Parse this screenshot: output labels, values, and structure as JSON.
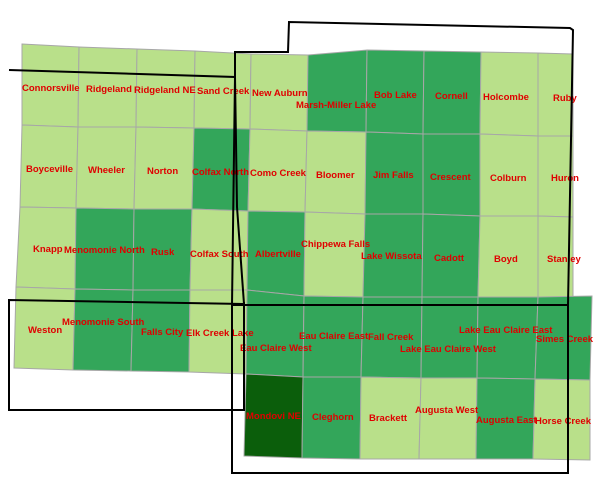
{
  "colors": {
    "light": "#b9e08a",
    "medium": "#33a65a",
    "dark": "#0b5e0b",
    "label": "#e00000",
    "grid": "#a7a7a7",
    "border": "#000000"
  },
  "quads": [
    {
      "name": "Connorsville",
      "shade": "light"
    },
    {
      "name": "Ridgeland",
      "shade": "light"
    },
    {
      "name": "Ridgeland NE",
      "shade": "light"
    },
    {
      "name": "Sand Creek",
      "shade": "light"
    },
    {
      "name": "New Auburn",
      "shade": "light"
    },
    {
      "name": "Marsh-Miller Lake",
      "shade": "medium"
    },
    {
      "name": "Bob Lake",
      "shade": "medium"
    },
    {
      "name": "Cornell",
      "shade": "medium"
    },
    {
      "name": "Holcombe",
      "shade": "light"
    },
    {
      "name": "Ruby",
      "shade": "light"
    },
    {
      "name": "Boyceville",
      "shade": "light"
    },
    {
      "name": "Wheeler",
      "shade": "light"
    },
    {
      "name": "Norton",
      "shade": "light"
    },
    {
      "name": "Colfax North",
      "shade": "medium"
    },
    {
      "name": "Como Creek",
      "shade": "light"
    },
    {
      "name": "Bloomer",
      "shade": "light"
    },
    {
      "name": "Jim Falls",
      "shade": "medium"
    },
    {
      "name": "Crescent",
      "shade": "medium"
    },
    {
      "name": "Colburn",
      "shade": "light"
    },
    {
      "name": "Huron",
      "shade": "light"
    },
    {
      "name": "Knapp",
      "shade": "light"
    },
    {
      "name": "Menomonie North",
      "shade": "medium"
    },
    {
      "name": "Rusk",
      "shade": "medium"
    },
    {
      "name": "Colfax South",
      "shade": "light"
    },
    {
      "name": "Albertville",
      "shade": "medium"
    },
    {
      "name": "Chippewa Falls",
      "shade": "light"
    },
    {
      "name": "Lake Wissota",
      "shade": "medium"
    },
    {
      "name": "Cadott",
      "shade": "medium"
    },
    {
      "name": "Boyd",
      "shade": "light"
    },
    {
      "name": "Stanley",
      "shade": "light"
    },
    {
      "name": "Weston",
      "shade": "light"
    },
    {
      "name": "Menomonie South",
      "shade": "medium"
    },
    {
      "name": "Falls City",
      "shade": "medium"
    },
    {
      "name": "Elk Creek Lake",
      "shade": "light"
    },
    {
      "name": "Eau Claire West",
      "shade": "medium"
    },
    {
      "name": "Eau Claire East",
      "shade": "medium"
    },
    {
      "name": "Fall Creek",
      "shade": "medium"
    },
    {
      "name": "Lake Eau Claire West",
      "shade": "medium"
    },
    {
      "name": "Lake Eau Claire East",
      "shade": "medium"
    },
    {
      "name": "Simes Creek",
      "shade": "medium"
    },
    {
      "name": "Mondovi NE",
      "shade": "dark"
    },
    {
      "name": "Cleghorn",
      "shade": "medium"
    },
    {
      "name": "Brackett",
      "shade": "light"
    },
    {
      "name": "Augusta West",
      "shade": "light"
    },
    {
      "name": "Augusta East",
      "shade": "medium"
    },
    {
      "name": "Horse Creek",
      "shade": "light"
    }
  ]
}
